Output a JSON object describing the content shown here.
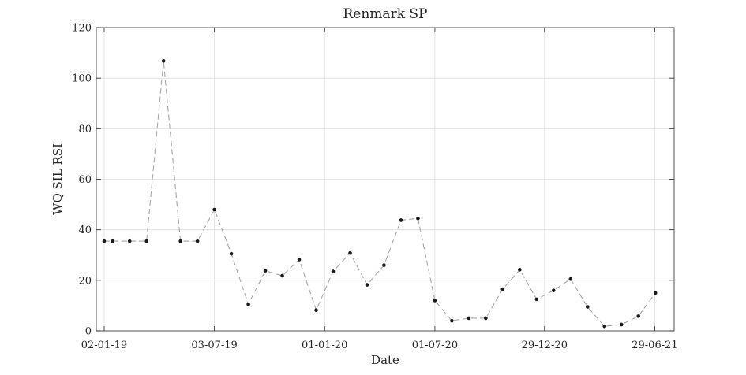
{
  "chart_data": {
    "type": "line",
    "title": "Renmark SP",
    "xlabel": "Date",
    "ylabel": "WQ SIL RSI",
    "ylim": [
      0,
      120
    ],
    "yticks": [
      0,
      20,
      40,
      60,
      80,
      100,
      120
    ],
    "xlim": [
      "2018-12-20",
      "2021-07-31"
    ],
    "xticks": [
      {
        "date": "2019-01-02",
        "label": "02-01-19"
      },
      {
        "date": "2019-07-03",
        "label": "03-07-19"
      },
      {
        "date": "2020-01-01",
        "label": "01-01-20"
      },
      {
        "date": "2020-07-01",
        "label": "01-07-20"
      },
      {
        "date": "2020-12-29",
        "label": "29-12-20"
      },
      {
        "date": "2021-06-29",
        "label": "29-06-21"
      }
    ],
    "grid": true,
    "line_color": "#a6a6a6",
    "marker_color": "#1a1a1a",
    "series": [
      {
        "x": [
          "2019-01-02",
          "2019-01-16",
          "2019-02-13",
          "2019-03-13",
          "2019-04-10",
          "2019-05-08",
          "2019-06-05",
          "2019-07-03",
          "2019-07-31",
          "2019-08-28",
          "2019-09-25",
          "2019-10-23",
          "2019-11-20",
          "2019-12-18",
          "2020-01-15",
          "2020-02-12",
          "2020-03-11",
          "2020-04-08",
          "2020-05-06",
          "2020-06-03",
          "2020-07-01",
          "2020-07-29",
          "2020-08-26",
          "2020-09-23",
          "2020-10-21",
          "2020-11-18",
          "2020-12-16",
          "2021-01-13",
          "2021-02-10",
          "2021-03-10",
          "2021-04-07",
          "2021-05-05",
          "2021-06-02",
          "2021-06-30"
        ],
        "values": [
          35.5,
          35.5,
          35.5,
          35.5,
          106.8,
          35.5,
          35.5,
          48,
          30.5,
          10.5,
          23.8,
          21.8,
          28.2,
          8.2,
          23.5,
          30.8,
          18.2,
          26,
          43.8,
          44.5,
          12,
          4,
          5,
          5,
          16.5,
          24.2,
          12.5,
          16,
          20.5,
          9.5,
          1.8,
          2.5,
          5.8,
          15
        ]
      }
    ]
  }
}
